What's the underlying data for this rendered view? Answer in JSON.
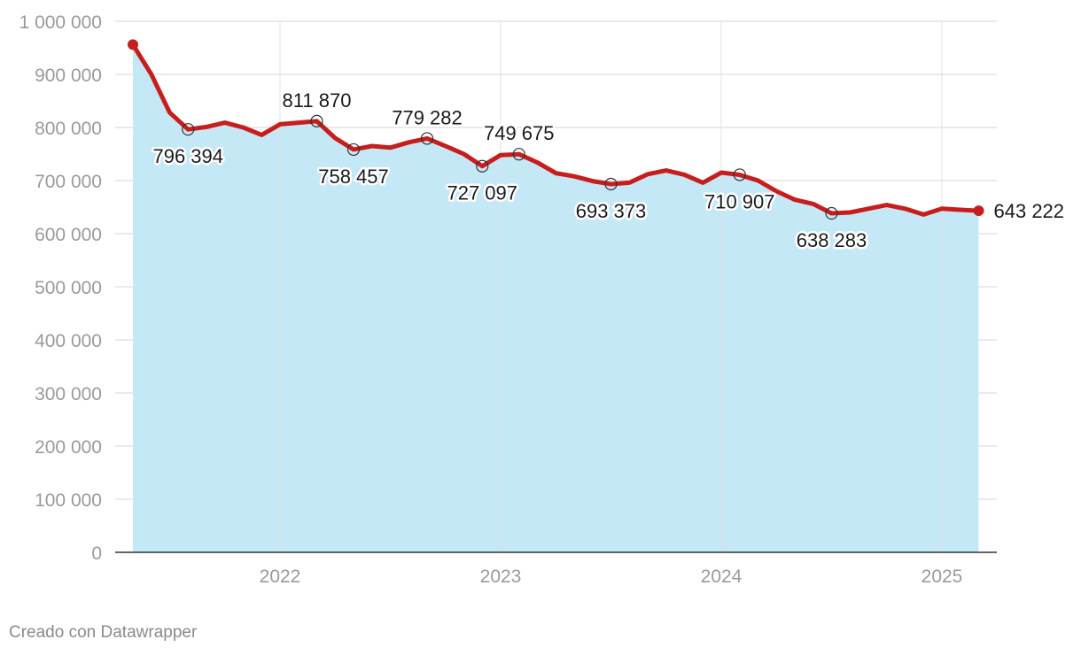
{
  "chart_data": {
    "type": "line",
    "x": [
      "2021-05",
      "2021-06",
      "2021-07",
      "2021-08",
      "2021-09",
      "2021-10",
      "2021-11",
      "2021-12",
      "2022-01",
      "2022-02",
      "2022-03",
      "2022-04",
      "2022-05",
      "2022-06",
      "2022-07",
      "2022-08",
      "2022-09",
      "2022-10",
      "2022-11",
      "2022-12",
      "2023-01",
      "2023-02",
      "2023-03",
      "2023-04",
      "2023-05",
      "2023-06",
      "2023-07",
      "2023-08",
      "2023-09",
      "2023-10",
      "2023-11",
      "2023-12",
      "2024-01",
      "2024-02",
      "2024-03",
      "2024-04",
      "2024-05",
      "2024-06",
      "2024-07",
      "2024-08",
      "2024-09",
      "2024-10",
      "2024-11",
      "2024-12",
      "2025-01",
      "2025-02",
      "2025-03"
    ],
    "series": [
      {
        "values": [
          956000,
          900000,
          828000,
          796394,
          801000,
          809000,
          800000,
          786000,
          806000,
          809000,
          811870,
          780000,
          758457,
          765000,
          762000,
          772000,
          779282,
          765000,
          750000,
          727097,
          748000,
          749675,
          734000,
          714000,
          708000,
          699000,
          693373,
          696000,
          712000,
          719000,
          711000,
          696000,
          715000,
          710907,
          700000,
          680000,
          664000,
          656000,
          638283,
          640000,
          647000,
          654000,
          647000,
          636000,
          647000,
          645000,
          643222
        ],
        "annotations": [
          {
            "label": "796 394",
            "index": 3
          },
          {
            "label": "811 870",
            "index": 10
          },
          {
            "label": "758 457",
            "index": 12
          },
          {
            "label": "779 282",
            "index": 16
          },
          {
            "label": "727 097",
            "index": 19
          },
          {
            "label": "749 675",
            "index": 21
          },
          {
            "label": "693 373",
            "index": 26
          },
          {
            "label": "710 907",
            "index": 33
          },
          {
            "label": "638 283",
            "index": 38
          },
          {
            "label": "643 222",
            "index": 46
          }
        ]
      }
    ],
    "ylim": [
      0,
      1000000
    ],
    "yticks": [
      0,
      100000,
      200000,
      300000,
      400000,
      500000,
      600000,
      700000,
      800000,
      900000,
      1000000
    ],
    "ytick_labels": [
      "0",
      "100 000",
      "200 000",
      "300 000",
      "400 000",
      "500 000",
      "600 000",
      "700 000",
      "800 000",
      "900 000",
      "1 000 000"
    ],
    "xticks": [
      "2022",
      "2023",
      "2024",
      "2025"
    ],
    "grid": true,
    "colors": {
      "line": "#c71e1d",
      "area": "#c5e8f7",
      "grid": "#dedede",
      "axis": "#333333"
    }
  },
  "credit": "Creado con Datawrapper"
}
